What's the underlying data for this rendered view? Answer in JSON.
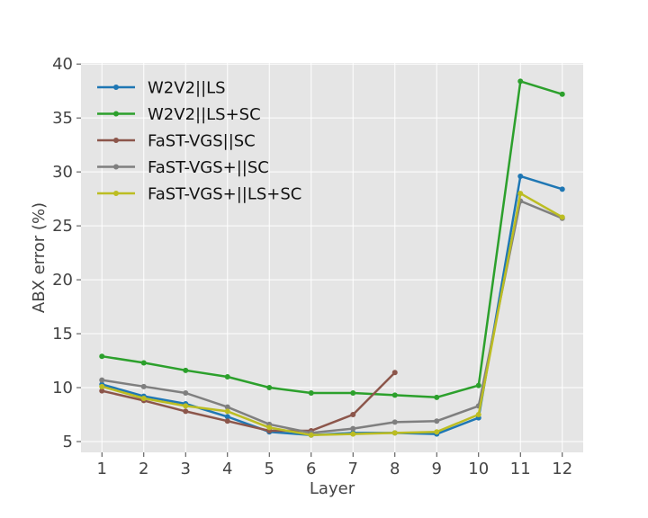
{
  "chart_data": {
    "type": "line",
    "xlabel": "Layer",
    "ylabel": "ABX error (%)",
    "x_ticks": [
      1,
      2,
      3,
      4,
      5,
      6,
      7,
      8,
      9,
      10,
      11,
      12
    ],
    "y_ticks": [
      5,
      10,
      15,
      20,
      25,
      30,
      35,
      40
    ],
    "xlim": [
      0.5,
      12.5
    ],
    "ylim": [
      4,
      40.1
    ],
    "grid": true,
    "legend_position": "top-left",
    "series": [
      {
        "name": "W2V2||LS",
        "color": "#1f77b4",
        "x": [
          1,
          2,
          3,
          4,
          5,
          6,
          7,
          8,
          9,
          10,
          11,
          12
        ],
        "y": [
          10.3,
          9.2,
          8.5,
          7.3,
          5.9,
          5.6,
          5.8,
          5.8,
          5.7,
          7.2,
          29.6,
          28.4
        ]
      },
      {
        "name": "W2V2||LS+SC",
        "color": "#2ca02c",
        "x": [
          1,
          2,
          3,
          4,
          5,
          6,
          7,
          8,
          9,
          10,
          11,
          12
        ],
        "y": [
          12.9,
          12.3,
          11.6,
          11.0,
          10.0,
          9.5,
          9.5,
          9.3,
          9.1,
          10.2,
          38.4,
          37.2
        ]
      },
      {
        "name": "FaST-VGS||SC",
        "color": "#8c564b",
        "x": [
          1,
          2,
          3,
          4,
          5,
          6,
          7,
          8
        ],
        "y": [
          9.7,
          8.8,
          7.8,
          6.9,
          6.0,
          6.0,
          7.5,
          11.4
        ]
      },
      {
        "name": "FaST-VGS+||SC",
        "color": "#7f7f7f",
        "x": [
          1,
          2,
          3,
          4,
          5,
          6,
          7,
          8,
          9,
          10,
          11,
          12
        ],
        "y": [
          10.7,
          10.1,
          9.5,
          8.2,
          6.6,
          5.8,
          6.2,
          6.8,
          6.9,
          8.3,
          27.3,
          25.7
        ]
      },
      {
        "name": "FaST-VGS+||LS+SC",
        "color": "#bcbd22",
        "x": [
          1,
          2,
          3,
          4,
          5,
          6,
          7,
          8,
          9,
          10,
          11,
          12
        ],
        "y": [
          10.1,
          9.0,
          8.3,
          7.8,
          6.3,
          5.6,
          5.7,
          5.8,
          5.9,
          7.5,
          28.0,
          25.8
        ]
      }
    ]
  },
  "style": {
    "plot_background": "#e5e5e5",
    "grid_color": "#ffffff",
    "text_color": "#444444"
  }
}
